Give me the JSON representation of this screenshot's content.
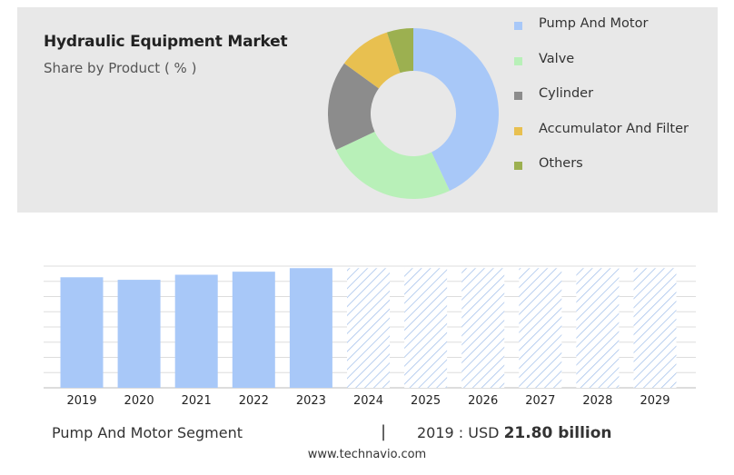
{
  "header": {
    "title": "Hydraulic Equipment Market",
    "subtitle": "Share by Product ( % )"
  },
  "chart_data": [
    {
      "type": "pie",
      "subtype": "donut",
      "title": "Hydraulic Equipment Market",
      "subtitle": "Share by Product ( % )",
      "legend_position": "right",
      "categories": [
        "Pump And Motor",
        "Valve",
        "Cylinder",
        "Accumulator And Filter",
        "Others"
      ],
      "values": [
        43,
        25,
        17,
        10,
        5
      ],
      "colors": [
        "#a8c8f8",
        "#b8f0b8",
        "#8c8c8c",
        "#e8c050",
        "#9cb050"
      ]
    },
    {
      "type": "bar",
      "series_name": "Pump And Motor Segment",
      "categories": [
        "2019",
        "2020",
        "2021",
        "2022",
        "2023",
        "2024",
        "2025",
        "2026",
        "2027",
        "2028",
        "2029"
      ],
      "values": [
        21.8,
        21.3,
        22.3,
        22.9,
        23.6,
        23.6,
        23.6,
        23.6,
        23.6,
        23.6,
        23.6
      ],
      "forecast_from": "2024",
      "forecast_style": "hatched",
      "ylim": [
        0,
        24
      ],
      "grid": true,
      "color": "#a8c8f8"
    }
  ],
  "footer": {
    "segment_label": "Pump And Motor Segment",
    "separator": "|",
    "year_value_prefix": "2019 : USD ",
    "year_value_amount": "21.80 billion",
    "website": "www.technavio.com"
  }
}
